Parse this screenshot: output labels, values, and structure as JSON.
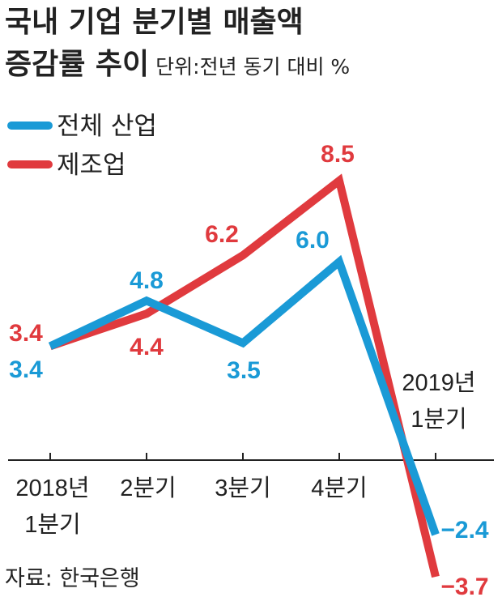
{
  "title_line1": "국내 기업 분기별 매출액",
  "title_line2": "증감률 추이",
  "unit": "단위:전년 동기 대비 %",
  "source": "자료: 한국은행",
  "colors": {
    "total": "#1a9ad6",
    "manufacturing": "#e03a3e",
    "axis": "#222222",
    "text": "#222222"
  },
  "chart_data": {
    "type": "line",
    "categories": [
      [
        "2018년",
        "1분기"
      ],
      [
        "2분기"
      ],
      [
        "3분기"
      ],
      [
        "4분기"
      ],
      [
        "2019년",
        "1분기"
      ]
    ],
    "series": [
      {
        "name": "전체 산업",
        "values": [
          3.4,
          4.8,
          3.5,
          6.0,
          -2.4
        ],
        "labels": [
          "3.4",
          "4.8",
          "3.5",
          "6.0",
          "−2.4"
        ]
      },
      {
        "name": "제조업",
        "values": [
          3.4,
          4.4,
          6.2,
          8.5,
          -3.7
        ],
        "labels": [
          "3.4",
          "4.4",
          "6.2",
          "8.5",
          "−3.7"
        ]
      }
    ],
    "ylim": [
      -3.7,
      8.5
    ],
    "legend_position": "top-left",
    "grid": false
  }
}
